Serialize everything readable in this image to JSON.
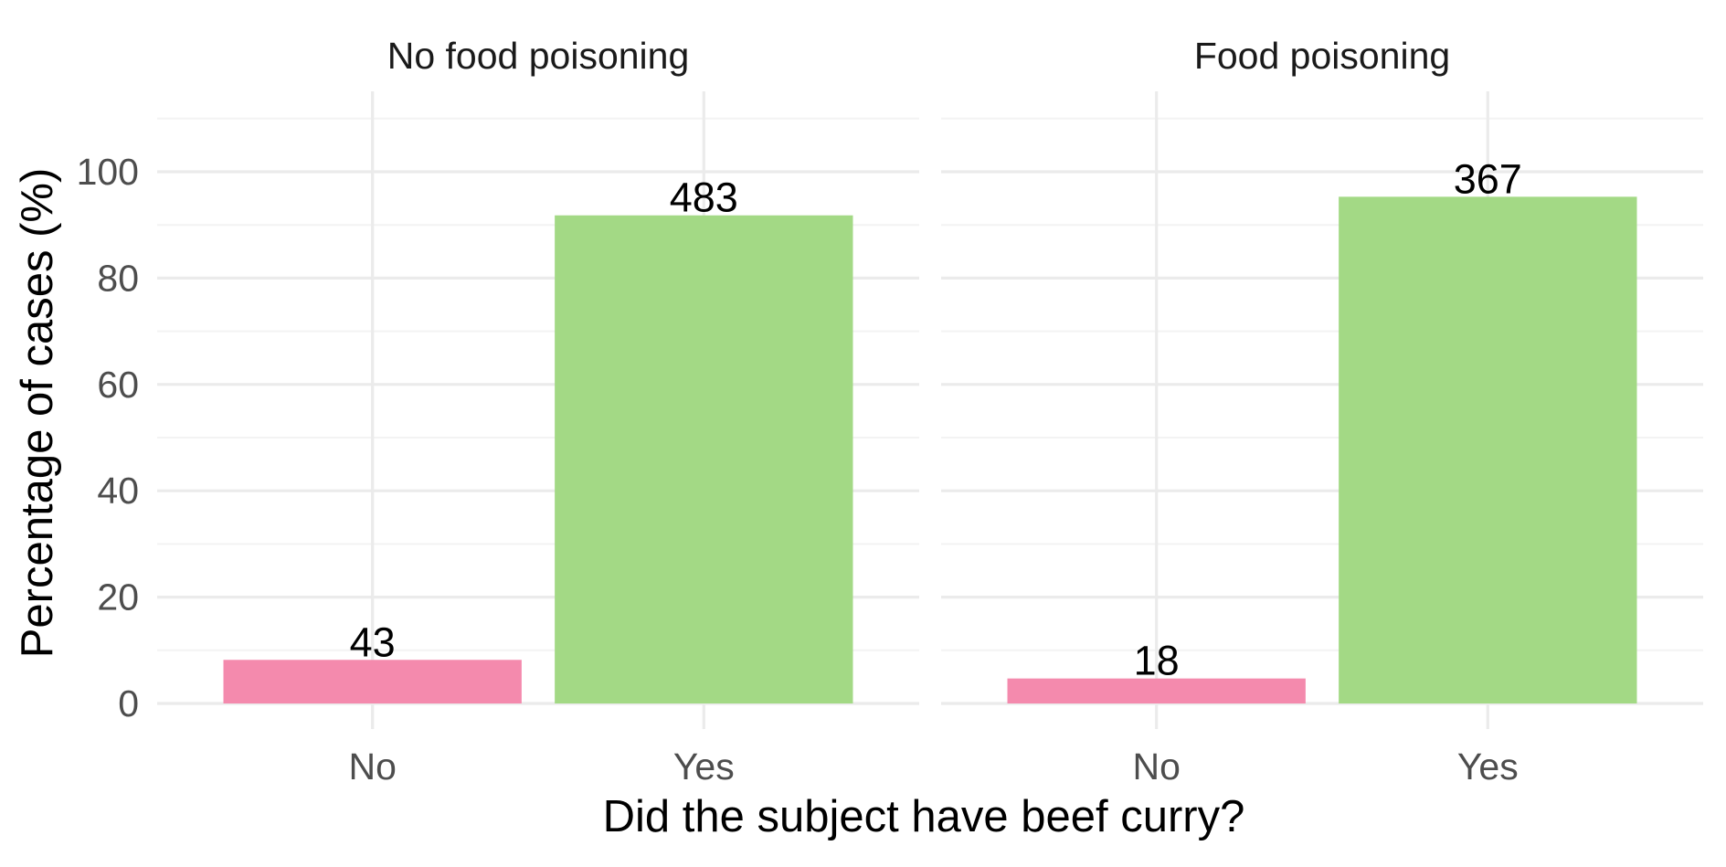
{
  "chart_data": {
    "type": "bar",
    "facet_titles": [
      "No food poisoning",
      "Food poisoning"
    ],
    "categories": [
      "No",
      "Yes"
    ],
    "panels": [
      {
        "title": "No food poisoning",
        "categories": [
          "No",
          "Yes"
        ],
        "values": [
          8.2,
          91.8
        ],
        "labels": [
          "43",
          "483"
        ]
      },
      {
        "title": "Food poisoning",
        "categories": [
          "No",
          "Yes"
        ],
        "values": [
          4.7,
          95.3
        ],
        "labels": [
          "18",
          "367"
        ]
      }
    ],
    "xlabel": "Did the subject have beef curry?",
    "ylabel": "Percentage of cases (%)",
    "ylim": [
      0,
      110
    ],
    "yticks": [
      "0",
      "20",
      "40",
      "60",
      "80",
      "100"
    ],
    "ytick_values": [
      0,
      20,
      40,
      60,
      80,
      100
    ],
    "colors": {
      "No": "#f48aad",
      "Yes": "#a3d985"
    },
    "grid": true,
    "legend": "none"
  }
}
